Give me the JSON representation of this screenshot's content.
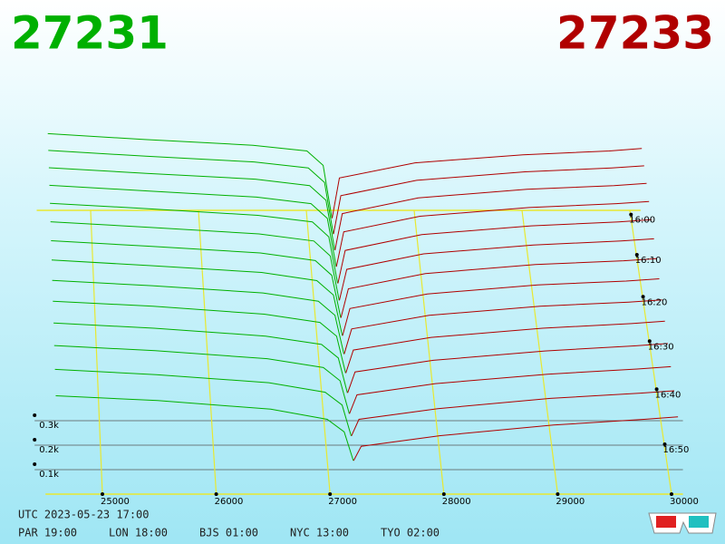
{
  "chart_data": {
    "type": "depth3d",
    "bid_price": "27231",
    "ask_price": "27233",
    "bid_color": "#00b000",
    "ask_color": "#b00000",
    "grid_color": "#e8e830",
    "xlim": [
      24500,
      30100
    ],
    "xticks": [
      25000,
      26000,
      27000,
      28000,
      29000,
      30000
    ],
    "zlim": [
      0,
      400
    ],
    "zticks": [
      {
        "value": 100,
        "label": "0.1k"
      },
      {
        "value": 200,
        "label": "0.2k"
      },
      {
        "value": 300,
        "label": "0.3k"
      }
    ],
    "tlim": [
      -2,
      56
    ],
    "tticks": [
      {
        "value": 0,
        "label": "16:00"
      },
      {
        "value": 10,
        "label": "16:10"
      },
      {
        "value": 20,
        "label": "16:20"
      },
      {
        "value": 30,
        "label": "16:30"
      },
      {
        "value": 40,
        "label": "16:40"
      },
      {
        "value": 50,
        "label": "16:50"
      }
    ],
    "bid_prices": [
      24600,
      25500,
      26500,
      27000,
      27150,
      27231
    ],
    "ask_prices": [
      27233,
      27300,
      28000,
      29000,
      29800,
      30100
    ],
    "snapshots": [
      {
        "t": 0,
        "bid": [
          400,
          372,
          345,
          318,
          250,
          0
        ],
        "ask": [
          0,
          190,
          262,
          300,
          318,
          330
        ]
      },
      {
        "t": 4,
        "bid": [
          392,
          365,
          338,
          310,
          242,
          0
        ],
        "ask": [
          0,
          180,
          252,
          292,
          310,
          320
        ]
      },
      {
        "t": 8,
        "bid": [
          383,
          357,
          330,
          300,
          232,
          0
        ],
        "ask": [
          0,
          170,
          243,
          283,
          300,
          310
        ]
      },
      {
        "t": 12,
        "bid": [
          374,
          348,
          320,
          290,
          222,
          0
        ],
        "ask": [
          0,
          160,
          232,
          272,
          290,
          300
        ]
      },
      {
        "t": 16,
        "bid": [
          365,
          340,
          310,
          280,
          212,
          0
        ],
        "ask": [
          0,
          150,
          222,
          262,
          280,
          290
        ]
      },
      {
        "t": 20,
        "bid": [
          355,
          330,
          300,
          268,
          200,
          0
        ],
        "ask": [
          0,
          140,
          210,
          250,
          268,
          278
        ]
      },
      {
        "t": 24,
        "bid": [
          345,
          320,
          290,
          256,
          190,
          0
        ],
        "ask": [
          0,
          130,
          198,
          238,
          255,
          265
        ]
      },
      {
        "t": 28,
        "bid": [
          335,
          310,
          280,
          244,
          180,
          0
        ],
        "ask": [
          0,
          120,
          185,
          225,
          242,
          252
        ]
      },
      {
        "t": 32,
        "bid": [
          323,
          300,
          268,
          232,
          170,
          0
        ],
        "ask": [
          0,
          110,
          170,
          210,
          228,
          238
        ]
      },
      {
        "t": 36,
        "bid": [
          312,
          290,
          256,
          220,
          160,
          0
        ],
        "ask": [
          0,
          100,
          155,
          195,
          215,
          225
        ]
      },
      {
        "t": 40,
        "bid": [
          300,
          278,
          244,
          208,
          150,
          0
        ],
        "ask": [
          0,
          90,
          140,
          180,
          202,
          212
        ]
      },
      {
        "t": 44,
        "bid": [
          290,
          268,
          234,
          196,
          140,
          0
        ],
        "ask": [
          0,
          80,
          128,
          168,
          190,
          200
        ]
      },
      {
        "t": 48,
        "bid": [
          280,
          258,
          224,
          184,
          130,
          0
        ],
        "ask": [
          0,
          70,
          115,
          158,
          180,
          190
        ]
      },
      {
        "t": 52,
        "bid": [
          270,
          250,
          214,
          172,
          120,
          0
        ],
        "ask": [
          0,
          60,
          104,
          148,
          172,
          182
        ]
      }
    ],
    "utc": "UTC 2023-05-23 17:00",
    "clocks": [
      "PAR 19:00",
      "LON 18:00",
      "BJS 01:00",
      "NYC 13:00",
      "TYO 02:00"
    ]
  }
}
